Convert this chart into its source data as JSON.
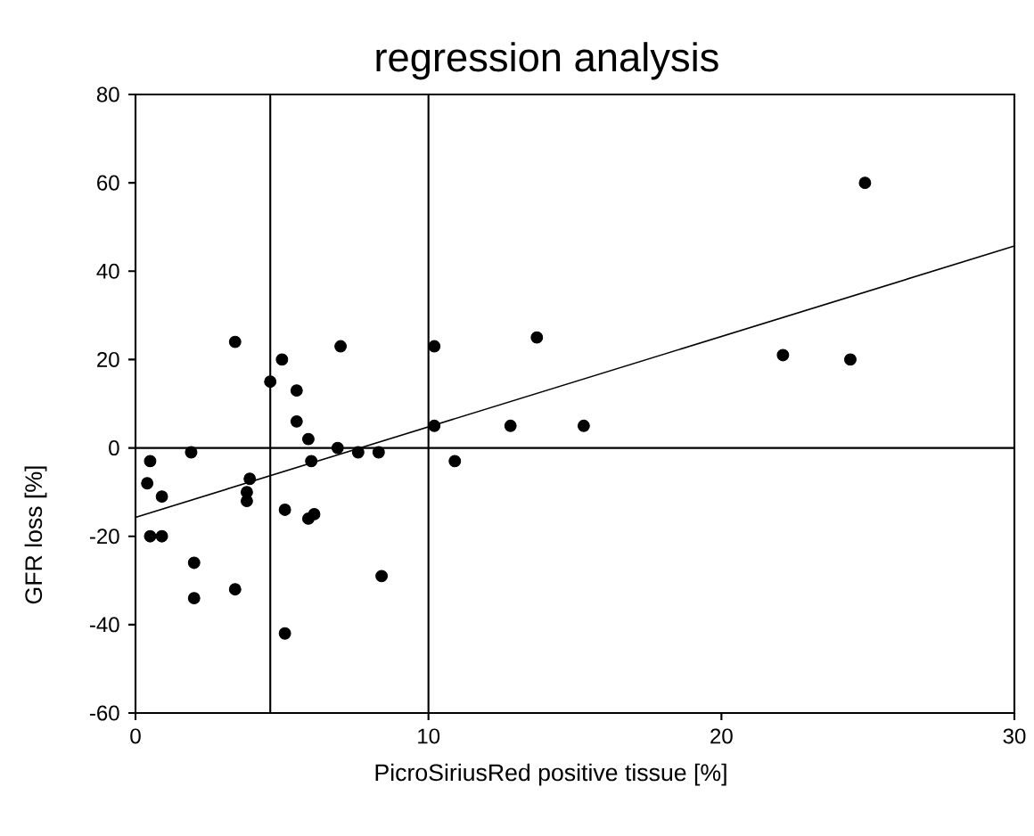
{
  "chart_data": {
    "type": "scatter",
    "title": "regression analysis",
    "xlabel": "PicroSiriusRed positive tissue [%]",
    "ylabel": "GFR loss [%]",
    "xlim": [
      0,
      30
    ],
    "ylim": [
      -60,
      80
    ],
    "xticks": [
      0,
      10,
      20,
      30
    ],
    "yticks": [
      -60,
      -40,
      -20,
      0,
      20,
      40,
      60,
      80
    ],
    "grid": false,
    "series": [
      {
        "color": "#000000",
        "marker": "circle",
        "x": [
          3.4,
          5.0,
          7.0,
          10.2,
          4.6,
          5.5,
          5.5,
          10.2,
          5.9,
          6.9,
          1.9,
          7.6,
          8.3,
          6.0,
          10.9,
          0.5,
          3.9,
          0.4,
          3.8,
          3.8,
          0.9,
          5.1,
          6.1,
          5.9,
          0.5,
          0.9,
          2.0,
          8.4,
          2.0,
          3.4,
          5.1,
          13.7,
          12.8,
          15.3,
          22.1,
          24.4,
          24.9
        ],
        "values": [
          24,
          20,
          23,
          23,
          15,
          13,
          6,
          5,
          2,
          0,
          -1,
          -1,
          -1,
          -3,
          -3,
          -3,
          -7,
          -8,
          -10,
          -12,
          -11,
          -14,
          -15,
          -16,
          -20,
          -20,
          -26,
          -29,
          -34,
          -32,
          -42,
          25,
          5,
          5,
          21,
          20,
          60
        ]
      },
      {
        "type": "line",
        "color": "#000000",
        "marker": "none",
        "line_style": "solid",
        "x": [
          0,
          30
        ],
        "values": [
          -15.7,
          45.7
        ]
      }
    ],
    "ref_lines": [
      {
        "axis": "x",
        "value": 4.6
      },
      {
        "axis": "x",
        "value": 10
      },
      {
        "axis": "y",
        "value": 0
      }
    ]
  }
}
